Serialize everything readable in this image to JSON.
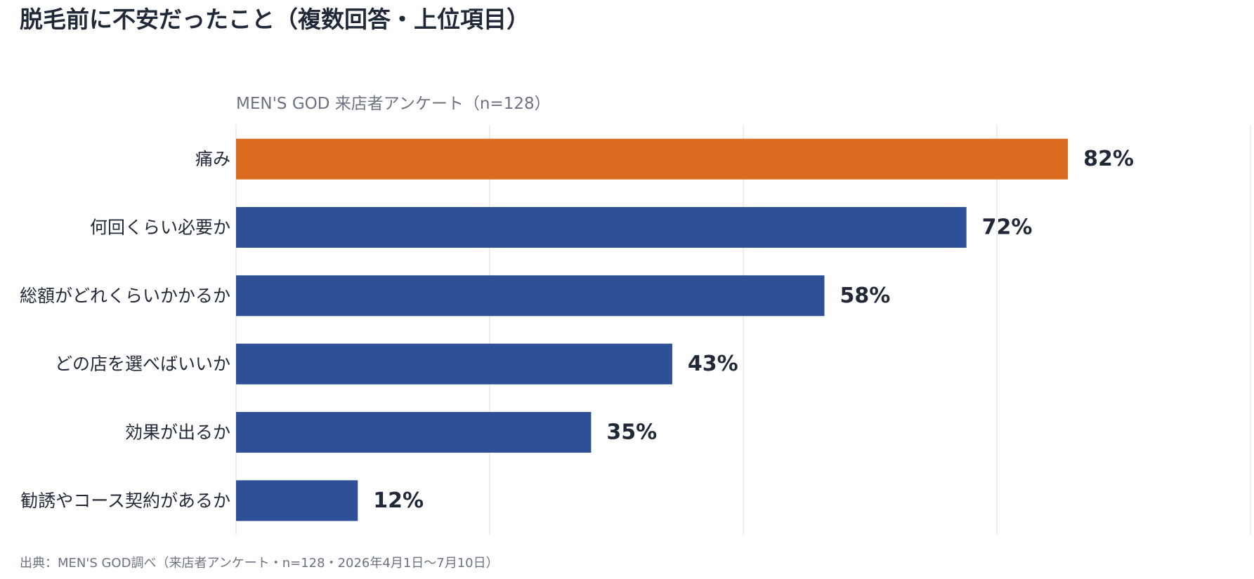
{
  "title": "脱毛前に不安だったこと（複数回答・上位項目）",
  "subtitle": "MEN'S GOD 来店者アンケート（n=128）",
  "source_note": "出典：MEN'S GOD調べ（来店者アンケート・n=128・2026年4月1日〜7月10日）",
  "colors": {
    "highlight": "#DA6B20",
    "primary": "#2E5096",
    "grid": "#E5E7EB",
    "text": "#1F2937"
  },
  "chart_data": {
    "type": "bar",
    "orientation": "horizontal",
    "title": "脱毛前に不安だったこと（複数回答・上位項目）",
    "subtitle": "MEN'S GOD 来店者アンケート（n=128）",
    "categories": [
      "痛み",
      "何回くらい必要か",
      "総額がどれくらいかかるか",
      "どの店を選べばいいか",
      "効果が出るか",
      "勧誘やコース契約があるか"
    ],
    "values": [
      82,
      72,
      58,
      43,
      35,
      12
    ],
    "value_labels": [
      "82%",
      "72%",
      "58%",
      "43%",
      "35%",
      "12%"
    ],
    "unit": "%",
    "xlim": [
      0,
      100
    ],
    "grid": true,
    "legend": "none",
    "highlight_index": 0
  }
}
